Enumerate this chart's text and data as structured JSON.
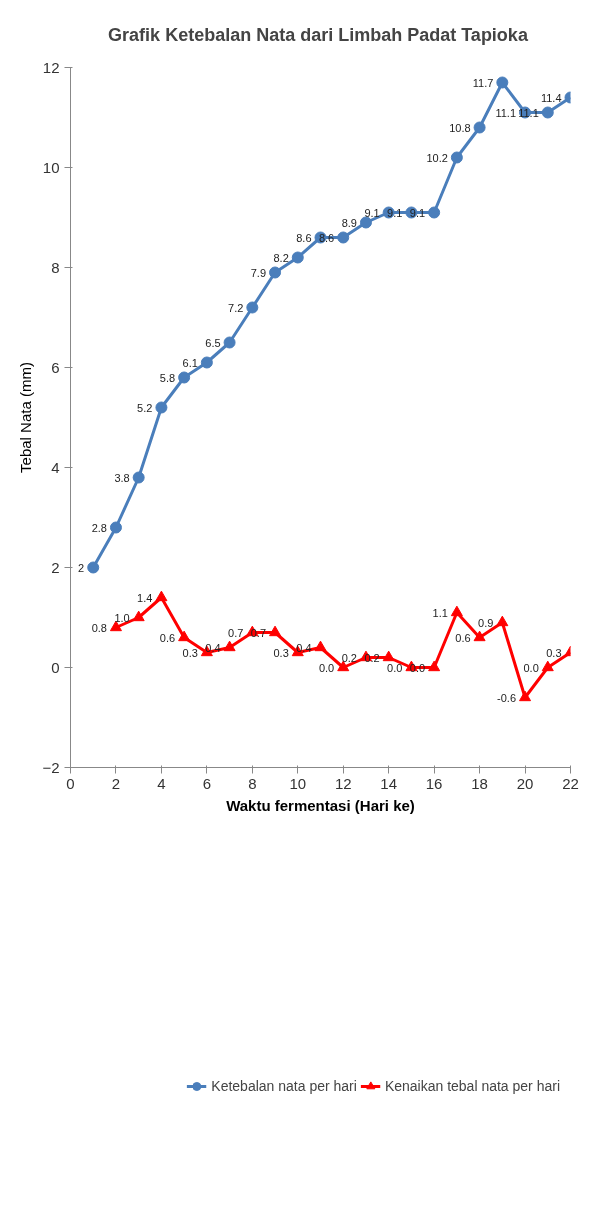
{
  "chart_data": {
    "type": "line",
    "title": "Grafik  Ketebalan Nata dari Limbah Padat Tapioka",
    "xlabel": "Waktu fermentasi (Hari ke)",
    "ylabel": "Tebal Nata (mm)",
    "xlim": [
      0,
      22
    ],
    "xticks": [
      0,
      2,
      4,
      6,
      8,
      10,
      12,
      14,
      16,
      18,
      20,
      22
    ],
    "ylim": [
      -2,
      12
    ],
    "yticks": [
      -2,
      0,
      2,
      4,
      6,
      8,
      10,
      12
    ],
    "grid": false,
    "legend": "bottom",
    "series": [
      {
        "name": "Ketebalan nata per hari",
        "color": "#4a7ebb",
        "marker": "circle",
        "x": [
          1,
          2,
          3,
          4,
          5,
          6,
          7,
          8,
          9,
          10,
          11,
          12,
          13,
          14,
          15,
          16,
          17,
          18,
          19,
          20,
          21,
          22
        ],
        "values": [
          2,
          2.8,
          3.8,
          5.2,
          5.8,
          6.1,
          6.5,
          7.2,
          7.9,
          8.2,
          8.6,
          8.6,
          8.9,
          9.1,
          9.1,
          9.1,
          10.2,
          10.8,
          11.7,
          11.1,
          11.1,
          11.4
        ],
        "value_labels": [
          "2",
          "2.8",
          "3.8",
          "5.2",
          "5.8",
          "6.1",
          "6.5",
          "7.2",
          "7.9",
          "8.2",
          "8.6",
          "8.6",
          "8.9",
          "9.1",
          "9.1",
          "9.1",
          "10.2",
          "10.8",
          "11.7",
          "11.1",
          "11.1",
          "11.4"
        ]
      },
      {
        "name": "Kenaikan tebal nata per hari",
        "color": "#ff0000",
        "marker": "triangle",
        "x": [
          2,
          3,
          4,
          5,
          6,
          7,
          8,
          9,
          10,
          11,
          12,
          13,
          14,
          15,
          16,
          17,
          18,
          19,
          20,
          21,
          22
        ],
        "values": [
          0.8,
          1.0,
          1.4,
          0.6,
          0.3,
          0.4,
          0.7,
          0.7,
          0.3,
          0.4,
          0.0,
          0.2,
          0.2,
          0.0,
          0.0,
          1.1,
          0.6,
          0.9,
          -0.6,
          0.0,
          0.3
        ],
        "value_labels": [
          "0.8",
          "1.0",
          "1.4",
          "0.6",
          "0.3",
          "0.4",
          "0.7",
          "0.7",
          "0.3",
          "0.4",
          "0.0",
          "0.2",
          "0.2",
          "0.0",
          "0.0",
          "1.1",
          "0.6",
          "0.9",
          "-0.6",
          "0.0",
          "0.3"
        ]
      }
    ]
  }
}
